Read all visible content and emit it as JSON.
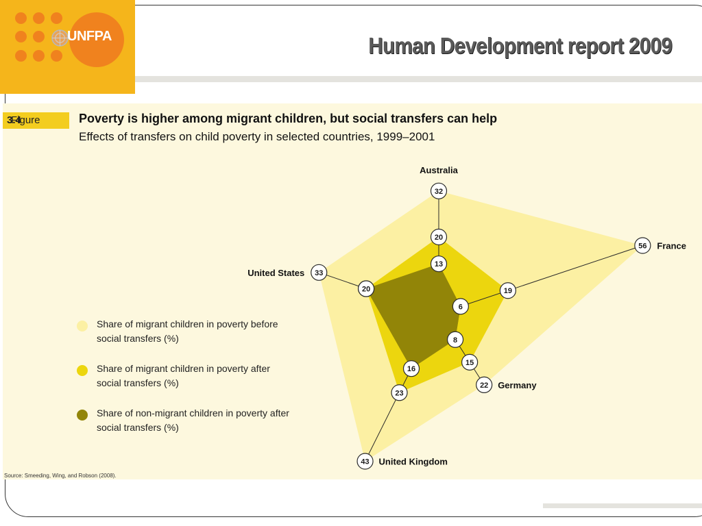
{
  "logo": {
    "text": "UNFPA",
    "brand_orange": "#f0821e",
    "brand_yellow": "#f5b51b",
    "icon": "un-globe-icon"
  },
  "slide": {
    "title": "Human Development report 2009"
  },
  "figure": {
    "label_prefix": "Figure",
    "label_number": "3.4",
    "source": "Source:  Smeeding, Wing, and Robson (2008)."
  },
  "chart_data": {
    "type": "radar",
    "title": "Poverty is higher among migrant children, but social transfers can help",
    "subtitle": "Effects of transfers on child poverty in selected countries, 1999–2001",
    "axes": [
      "Australia",
      "France",
      "Germany",
      "United Kingdom",
      "United States"
    ],
    "series": [
      {
        "name": "Share of migrant children in poverty before social transfers (%)",
        "values": [
          32,
          56,
          22,
          43,
          33
        ],
        "color": "#fcf0a3"
      },
      {
        "name": "Share of migrant children in poverty after social transfers (%)",
        "values": [
          20,
          19,
          15,
          23,
          20
        ],
        "color": "#ecd60e"
      },
      {
        "name": "Share of non-migrant children in poverty after social transfers (%)",
        "values": [
          13,
          6,
          8,
          16,
          20
        ],
        "color": "#928508"
      }
    ],
    "legend_position": "left",
    "grid": false
  }
}
